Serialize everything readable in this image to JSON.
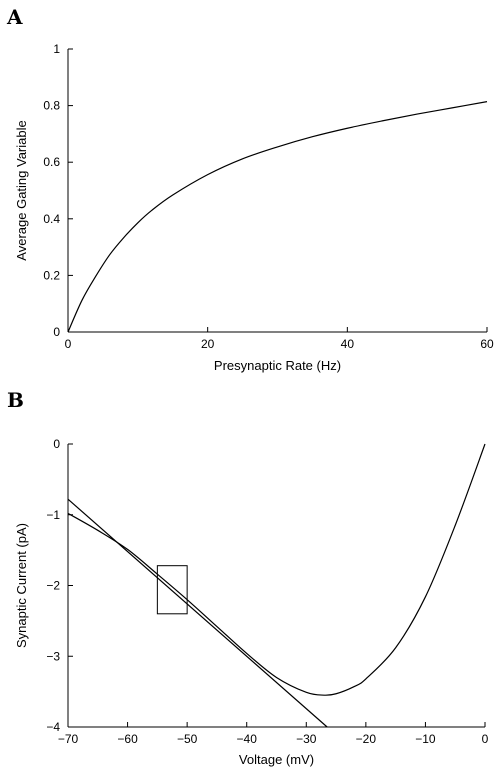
{
  "chart_data": [
    {
      "panel": "A",
      "type": "line",
      "title": "",
      "xlabel": "Presynaptic Rate (Hz)",
      "ylabel": "Average Gating Variable",
      "xlim": [
        0,
        60
      ],
      "ylim": [
        0,
        1
      ],
      "xticks": [
        0,
        20,
        40,
        60
      ],
      "yticks": [
        0,
        0.2,
        0.4,
        0.6,
        0.8,
        1
      ],
      "xtick_labels": [
        "0",
        "20",
        "40",
        "60"
      ],
      "ytick_labels": [
        "0",
        "0.2",
        "0.4",
        "0.6",
        "0.8",
        "1"
      ],
      "grid": false,
      "series": [
        {
          "x": [
            0,
            2,
            4,
            6,
            8,
            10,
            12,
            15,
            20,
            25,
            30,
            35,
            40,
            45,
            50,
            55,
            60
          ],
          "y": [
            0,
            0.112,
            0.198,
            0.274,
            0.334,
            0.386,
            0.43,
            0.484,
            0.556,
            0.612,
            0.654,
            0.69,
            0.72,
            0.746,
            0.77,
            0.792,
            0.814
          ]
        }
      ]
    },
    {
      "panel": "B",
      "type": "line",
      "title": "",
      "xlabel": "Voltage (mV)",
      "ylabel": "Synaptic Current (pA)",
      "xlim": [
        -70,
        0
      ],
      "ylim": [
        -4,
        0
      ],
      "xticks": [
        -70,
        -60,
        -50,
        -40,
        -30,
        -20,
        -10,
        0
      ],
      "yticks": [
        -4,
        -3,
        -2,
        -1,
        0
      ],
      "xtick_labels": [
        "−70",
        "−60",
        "−50",
        "−40",
        "−30",
        "−20",
        "−10",
        "0"
      ],
      "ytick_labels": [
        "−4",
        "−3",
        "−2",
        "−1",
        "0"
      ],
      "grid": false,
      "series": [
        {
          "x": [
            -70,
            -65,
            -60,
            -55,
            -50,
            -45,
            -40,
            -35,
            -30,
            -27,
            -25,
            -22,
            -20,
            -15,
            -10,
            -5,
            0
          ],
          "y": [
            -0.98,
            -1.22,
            -1.49,
            -1.84,
            -2.2,
            -2.58,
            -2.96,
            -3.3,
            -3.51,
            -3.55,
            -3.53,
            -3.43,
            -3.32,
            -2.88,
            -2.16,
            -1.15,
            0
          ]
        },
        {
          "x": [
            -70,
            -26.5
          ],
          "y": [
            -0.78,
            -4.0
          ]
        }
      ],
      "annotations": [
        {
          "type": "rect",
          "x": [
            -55,
            -50
          ],
          "y": [
            -2.4,
            -1.72
          ]
        }
      ]
    }
  ]
}
